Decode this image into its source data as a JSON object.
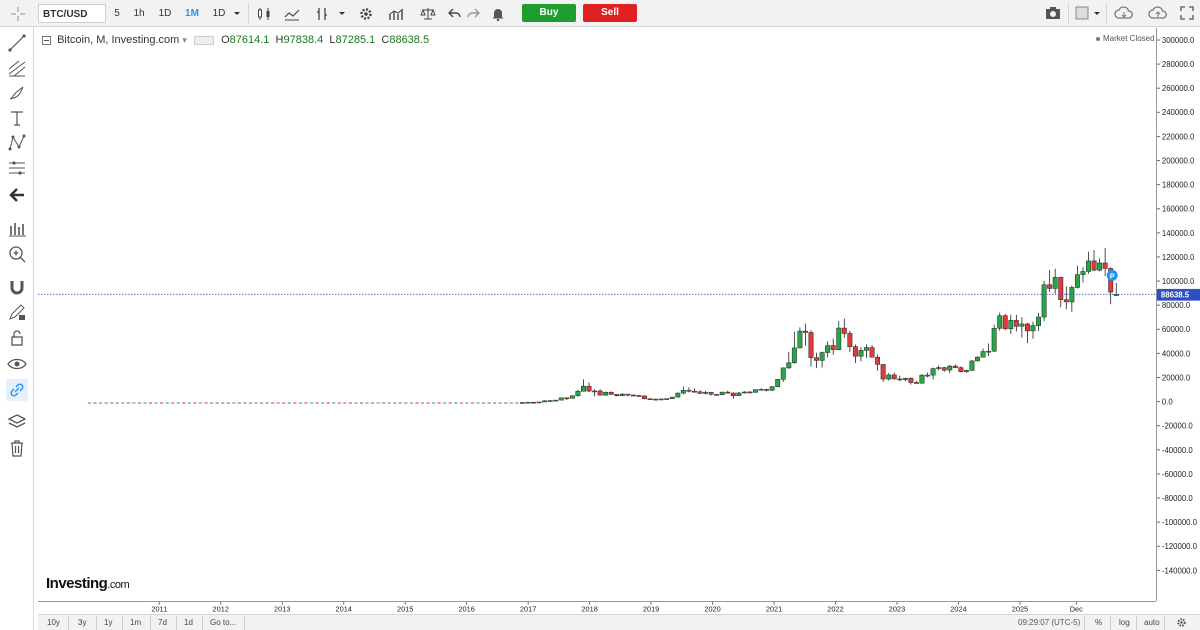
{
  "toolbar": {
    "symbol": "BTC/USD",
    "intervals": [
      "5",
      "1h",
      "1D",
      "1M",
      "1D"
    ],
    "active_interval": "1M",
    "buy_label": "Buy",
    "sell_label": "Sell"
  },
  "legend": {
    "title": "Bitcoin, M, Investing.com",
    "open_label": "O",
    "open": "87614.1",
    "high_label": "H",
    "high": "97838.4",
    "low_label": "L",
    "low": "87285.1",
    "close_label": "C",
    "close": "88638.5"
  },
  "market_status": "Market Closed",
  "logo": {
    "main": "Investing",
    "suffix": ".com"
  },
  "price_label": "88638.5",
  "marker_label": "P",
  "bottom": {
    "ranges": [
      "10y",
      "3y",
      "1y",
      "1m",
      "7d",
      "1d"
    ],
    "goto": "Go to...",
    "time": "09:29:07 (UTC-5)",
    "percent": "%",
    "log": "log",
    "auto": "auto"
  },
  "colors": {
    "up": "#26a644",
    "down": "#e03a3a",
    "price_line": "#3a56c8",
    "label_bg": "#2f4ec4",
    "marker": "#2196f3"
  },
  "chart_data": {
    "type": "candlestick",
    "title": "Bitcoin, M, Investing.com",
    "ylim": [
      -155000,
      305000
    ],
    "y_ticks": [
      300000,
      280000,
      260000,
      240000,
      220000,
      200000,
      180000,
      160000,
      140000,
      120000,
      100000,
      80000,
      60000,
      40000,
      20000,
      0,
      -20000,
      -40000,
      -60000,
      -80000,
      -100000,
      -120000,
      -140000
    ],
    "y_tick_labels": [
      "300000.0",
      "280000.0",
      "260000.0",
      "240000.0",
      "220000.0",
      "200000.0",
      "180000.0",
      "160000.0",
      "140000.0",
      "120000.0",
      "100000.0",
      "80000.0",
      "60000.0",
      "40000.0",
      "20000.0",
      "0.0",
      "-20000.0",
      "-40000.0",
      "-60000.0",
      "-80000.0",
      "-100000.0",
      "-120000.0",
      "-140000.0"
    ],
    "x_labels": [
      "2011",
      "2012",
      "2013",
      "2014",
      "2015",
      "2016",
      "2017",
      "2018",
      "2019",
      "2020",
      "2021",
      "2022",
      "2023",
      "2024",
      "2025",
      "Dec"
    ],
    "start": "2010-07",
    "last_close": 88638.5,
    "flat_segment": {
      "from": "2010-07",
      "to": "2016-12",
      "level": 500
    },
    "ohlc": [
      [
        "2017-01",
        960,
        1150,
        760,
        970
      ],
      [
        "2017-02",
        970,
        1200,
        920,
        1190
      ],
      [
        "2017-03",
        1190,
        1350,
        900,
        1070
      ],
      [
        "2017-04",
        1070,
        1350,
        1060,
        1350
      ],
      [
        "2017-05",
        1350,
        2760,
        1340,
        2300
      ],
      [
        "2017-06",
        2300,
        3000,
        2100,
        2500
      ],
      [
        "2017-07",
        2500,
        2950,
        1830,
        2870
      ],
      [
        "2017-08",
        2870,
        4760,
        2670,
        4730
      ],
      [
        "2017-09",
        4730,
        5000,
        2970,
        4340
      ],
      [
        "2017-10",
        4340,
        6470,
        4110,
        6450
      ],
      [
        "2017-11",
        6450,
        11400,
        5520,
        10000
      ],
      [
        "2017-12",
        10000,
        19800,
        10000,
        14150
      ],
      [
        "2018-01",
        14150,
        17250,
        9200,
        10200
      ],
      [
        "2018-02",
        10200,
        11800,
        5900,
        10300
      ],
      [
        "2018-03",
        10300,
        11700,
        6600,
        6900
      ],
      [
        "2018-04",
        6900,
        9800,
        6450,
        9250
      ],
      [
        "2018-05",
        9250,
        10000,
        7050,
        7500
      ],
      [
        "2018-06",
        7500,
        7800,
        5800,
        6400
      ],
      [
        "2018-07",
        6400,
        8500,
        6100,
        7730
      ],
      [
        "2018-08",
        7730,
        7760,
        5880,
        7000
      ],
      [
        "2018-09",
        7000,
        7400,
        6100,
        6600
      ],
      [
        "2018-10",
        6600,
        7000,
        6200,
        6300
      ],
      [
        "2018-11",
        6300,
        6550,
        3500,
        4000
      ],
      [
        "2018-12",
        4000,
        4240,
        3150,
        3700
      ],
      [
        "2019-01",
        3700,
        4100,
        3350,
        3450
      ],
      [
        "2019-02",
        3450,
        4200,
        3400,
        3800
      ],
      [
        "2019-03",
        3800,
        4150,
        3700,
        4100
      ],
      [
        "2019-04",
        4100,
        5620,
        4050,
        5300
      ],
      [
        "2019-05",
        5300,
        9080,
        5300,
        8550
      ],
      [
        "2019-06",
        8550,
        13800,
        7550,
        10800
      ],
      [
        "2019-07",
        10800,
        13200,
        9150,
        10100
      ],
      [
        "2019-08",
        10100,
        12300,
        9400,
        9600
      ],
      [
        "2019-09",
        9600,
        10900,
        7800,
        8300
      ],
      [
        "2019-10",
        8300,
        10400,
        7400,
        9150
      ],
      [
        "2019-11",
        9150,
        9500,
        6550,
        7550
      ],
      [
        "2019-12",
        7550,
        7750,
        6450,
        7200
      ],
      [
        "2020-01",
        7200,
        9550,
        6900,
        9350
      ],
      [
        "2020-02",
        9350,
        10500,
        8450,
        8600
      ],
      [
        "2020-03",
        8600,
        9200,
        3850,
        6400
      ],
      [
        "2020-04",
        6400,
        9450,
        6150,
        8650
      ],
      [
        "2020-05",
        8650,
        10100,
        8150,
        9450
      ],
      [
        "2020-06",
        9450,
        10400,
        8850,
        9150
      ],
      [
        "2020-07",
        9150,
        11450,
        9050,
        11350
      ],
      [
        "2020-08",
        11350,
        12450,
        10950,
        11650
      ],
      [
        "2020-09",
        11650,
        12050,
        9850,
        10800
      ],
      [
        "2020-10",
        10800,
        14100,
        10400,
        13800
      ],
      [
        "2020-11",
        13800,
        19800,
        13200,
        19700
      ],
      [
        "2020-12",
        19700,
        29300,
        17600,
        29000
      ],
      [
        "2021-01",
        29000,
        41950,
        28150,
        33100
      ],
      [
        "2021-02",
        33100,
        58350,
        32300,
        45150
      ],
      [
        "2021-03",
        45150,
        61800,
        45000,
        58800
      ],
      [
        "2021-04",
        58800,
        64850,
        47050,
        57700
      ],
      [
        "2021-05",
        57700,
        59600,
        30000,
        37300
      ],
      [
        "2021-06",
        37300,
        41300,
        28800,
        35050
      ],
      [
        "2021-07",
        35050,
        42300,
        29300,
        41450
      ],
      [
        "2021-08",
        41450,
        50500,
        37400,
        47100
      ],
      [
        "2021-09",
        47100,
        52900,
        39600,
        43800
      ],
      [
        "2021-10",
        43800,
        66950,
        43300,
        61300
      ],
      [
        "2021-11",
        61300,
        69000,
        53400,
        56900
      ],
      [
        "2021-12",
        56900,
        59050,
        42000,
        46200
      ],
      [
        "2022-01",
        46200,
        47950,
        32950,
        38500
      ],
      [
        "2022-02",
        38500,
        45800,
        34300,
        43200
      ],
      [
        "2022-03",
        43200,
        48100,
        37200,
        45500
      ],
      [
        "2022-04",
        45500,
        47400,
        37600,
        37650
      ],
      [
        "2022-05",
        37650,
        39900,
        26700,
        31800
      ],
      [
        "2022-06",
        31800,
        31950,
        17600,
        19950
      ],
      [
        "2022-07",
        19950,
        24650,
        18800,
        23300
      ],
      [
        "2022-08",
        23300,
        25150,
        19550,
        20050
      ],
      [
        "2022-09",
        20050,
        22750,
        18200,
        19450
      ],
      [
        "2022-10",
        19450,
        21050,
        18250,
        20500
      ],
      [
        "2022-11",
        20500,
        21450,
        15500,
        17150
      ],
      [
        "2022-12",
        17150,
        18400,
        16300,
        16550
      ],
      [
        "2023-01",
        16550,
        23950,
        16500,
        23150
      ],
      [
        "2023-02",
        23150,
        25250,
        21400,
        23150
      ],
      [
        "2023-03",
        23150,
        29200,
        19600,
        28450
      ],
      [
        "2023-04",
        28450,
        31000,
        26950,
        29250
      ],
      [
        "2023-05",
        29250,
        29800,
        25800,
        27200
      ],
      [
        "2023-06",
        27200,
        31450,
        24800,
        30450
      ],
      [
        "2023-07",
        30450,
        31800,
        28900,
        29250
      ],
      [
        "2023-08",
        29250,
        30200,
        25400,
        25950
      ],
      [
        "2023-09",
        25950,
        27450,
        24900,
        26950
      ],
      [
        "2023-10",
        26950,
        35250,
        26600,
        34650
      ],
      [
        "2023-11",
        34650,
        38400,
        34150,
        37700
      ],
      [
        "2023-12",
        37700,
        44700,
        37700,
        42250
      ],
      [
        "2024-01",
        42250,
        48900,
        38550,
        42550
      ],
      [
        "2024-02",
        42550,
        64050,
        41900,
        61150
      ],
      [
        "2024-03",
        61150,
        73750,
        59100,
        71300
      ],
      [
        "2024-04",
        71300,
        72750,
        59600,
        60650
      ],
      [
        "2024-05",
        60650,
        71950,
        56600,
        67500
      ],
      [
        "2024-06",
        67500,
        72000,
        58450,
        62700
      ],
      [
        "2024-07",
        62700,
        70000,
        53550,
        64600
      ],
      [
        "2024-08",
        64600,
        65650,
        49100,
        58950
      ],
      [
        "2024-09",
        58950,
        66500,
        52600,
        63300
      ],
      [
        "2024-10",
        63300,
        73600,
        58900,
        70200
      ],
      [
        "2024-11",
        70200,
        99650,
        66850,
        96400
      ],
      [
        "2024-12",
        96400,
        108350,
        90500,
        93400
      ],
      [
        "2025-01",
        93400,
        109350,
        89200,
        102400
      ],
      [
        "2025-02",
        102400,
        102800,
        78200,
        84350
      ],
      [
        "2025-03",
        84350,
        95000,
        76600,
        82500
      ],
      [
        "2025-04",
        82500,
        95750,
        74450,
        94200
      ],
      [
        "2025-05",
        94200,
        111900,
        93400,
        104600
      ],
      [
        "2025-06",
        104600,
        110550,
        98250,
        107150
      ],
      [
        "2025-07",
        107150,
        123200,
        105300,
        115700
      ],
      [
        "2025-08",
        115700,
        124450,
        107300,
        108250
      ],
      [
        "2025-09",
        108250,
        117900,
        107300,
        114050
      ],
      [
        "2025-10",
        114050,
        126200,
        103500,
        109600
      ],
      [
        "2025-11",
        109600,
        110650,
        80600,
        90400
      ],
      [
        "2025-12",
        87614.1,
        97838.4,
        87285.1,
        88638.5
      ]
    ]
  }
}
